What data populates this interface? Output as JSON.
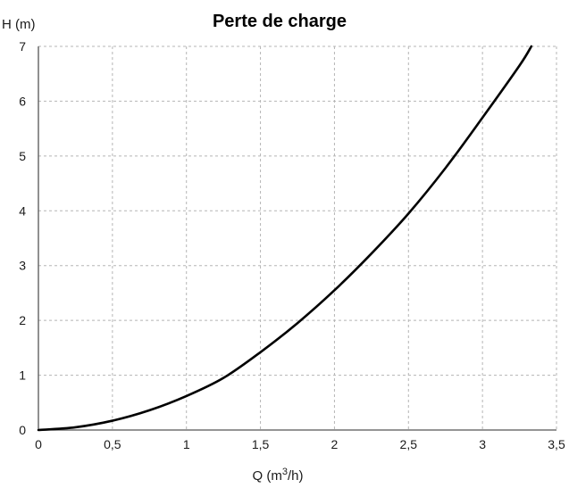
{
  "chart_data": {
    "type": "line",
    "title": "Perte de charge",
    "ylabel": "H (m)",
    "xlabel_main": "Q (m",
    "xlabel_sup": "3",
    "xlabel_tail": "/h)",
    "xlim": [
      0,
      3.5
    ],
    "ylim": [
      0,
      7
    ],
    "grid": true,
    "x_ticks": [
      0,
      0.5,
      1,
      1.5,
      2,
      2.5,
      3,
      3.5
    ],
    "x_tick_labels": [
      "0",
      "0,5",
      "1",
      "1,5",
      "2",
      "2,5",
      "3",
      "3,5"
    ],
    "y_ticks": [
      0,
      1,
      2,
      3,
      4,
      5,
      6,
      7
    ],
    "y_tick_labels": [
      "0",
      "1",
      "2",
      "3",
      "4",
      "5",
      "6",
      "7"
    ],
    "series": [
      {
        "x": [
          0,
          0.25,
          0.5,
          0.75,
          1,
          1.25,
          1.5,
          1.75,
          2,
          2.25,
          2.5,
          2.75,
          3,
          3.25,
          3.33
        ],
        "y": [
          0,
          0.05,
          0.17,
          0.36,
          0.62,
          0.95,
          1.42,
          1.95,
          2.55,
          3.22,
          3.95,
          4.78,
          5.7,
          6.65,
          7.0
        ]
      }
    ],
    "colors": {
      "curve": "#000000",
      "grid": "#b5b5b5",
      "axis": "#555555"
    }
  }
}
